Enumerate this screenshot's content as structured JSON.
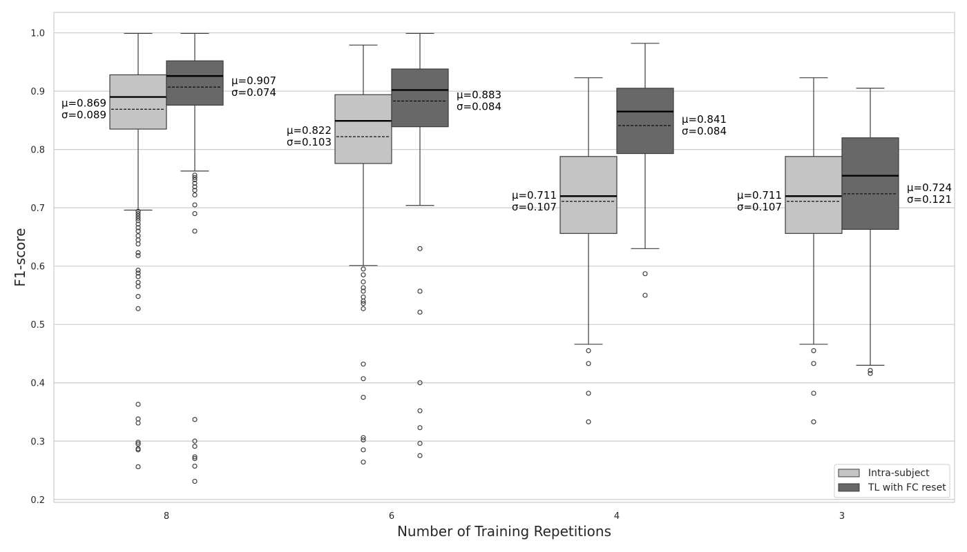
{
  "chart_data": {
    "type": "box",
    "title": "",
    "xlabel": "Number of Training Repetitions",
    "ylabel": "F1-score",
    "ylim": [
      0.195,
      1.035
    ],
    "yticks": [
      0.2,
      0.3,
      0.4,
      0.5,
      0.6,
      0.7,
      0.8,
      0.9,
      1.0
    ],
    "ytick_labels": [
      "0.2",
      "0.3",
      "0.4",
      "0.5",
      "0.6",
      "0.7",
      "0.8",
      "0.9",
      "1.0"
    ],
    "categories": [
      "8",
      "6",
      "4",
      "3"
    ],
    "grid": true,
    "legend_position": "bottom-right",
    "series": [
      {
        "name": "Intra-subject",
        "color": "#c4c4c4",
        "boxes": [
          {
            "whisker_low": 0.696,
            "q1": 0.835,
            "median": 0.89,
            "mean": 0.869,
            "q3": 0.928,
            "whisker_high": 0.999,
            "mean_label": "μ=0.869",
            "std_label": "σ=0.089",
            "outliers": [
              0.694,
              0.69,
              0.686,
              0.682,
              0.678,
              0.672,
              0.666,
              0.66,
              0.652,
              0.645,
              0.638,
              0.623,
              0.618,
              0.593,
              0.588,
              0.582,
              0.572,
              0.565,
              0.548,
              0.527,
              0.363,
              0.338,
              0.331,
              0.298,
              0.295,
              0.287,
              0.285,
              0.256
            ]
          },
          {
            "whisker_low": 0.601,
            "q1": 0.776,
            "median": 0.849,
            "mean": 0.822,
            "q3": 0.894,
            "whisker_high": 0.979,
            "mean_label": "μ=0.822",
            "std_label": "σ=0.103",
            "outliers": [
              0.595,
              0.585,
              0.573,
              0.563,
              0.557,
              0.547,
              0.54,
              0.536,
              0.527,
              0.432,
              0.407,
              0.375,
              0.306,
              0.302,
              0.285,
              0.264
            ]
          },
          {
            "whisker_low": 0.466,
            "q1": 0.656,
            "median": 0.72,
            "mean": 0.711,
            "q3": 0.788,
            "whisker_high": 0.923,
            "mean_label": "μ=0.711",
            "std_label": "σ=0.107",
            "outliers": [
              0.455,
              0.433,
              0.382,
              0.333
            ]
          },
          {
            "whisker_low": 0.466,
            "q1": 0.656,
            "median": 0.72,
            "mean": 0.711,
            "q3": 0.788,
            "whisker_high": 0.923,
            "mean_label": "μ=0.711",
            "std_label": "σ=0.107",
            "outliers": [
              0.455,
              0.433,
              0.382,
              0.333
            ]
          }
        ]
      },
      {
        "name": "TL with FC reset",
        "color": "#686868",
        "boxes": [
          {
            "whisker_low": 0.763,
            "q1": 0.876,
            "median": 0.926,
            "mean": 0.907,
            "q3": 0.952,
            "whisker_high": 0.999,
            "mean_label": "μ=0.907",
            "std_label": "σ=0.074",
            "outliers": [
              0.756,
              0.752,
              0.748,
              0.742,
              0.736,
              0.73,
              0.722,
              0.705,
              0.69,
              0.66,
              0.337,
              0.3,
              0.291,
              0.273,
              0.27,
              0.257,
              0.231
            ]
          },
          {
            "whisker_low": 0.704,
            "q1": 0.839,
            "median": 0.902,
            "mean": 0.883,
            "q3": 0.938,
            "whisker_high": 0.999,
            "mean_label": "μ=0.883",
            "std_label": "σ=0.084",
            "outliers": [
              0.63,
              0.557,
              0.521,
              0.4,
              0.352,
              0.323,
              0.296,
              0.275
            ]
          },
          {
            "whisker_low": 0.63,
            "q1": 0.793,
            "median": 0.865,
            "mean": 0.841,
            "q3": 0.905,
            "whisker_high": 0.982,
            "mean_label": "μ=0.841",
            "std_label": "σ=0.084",
            "outliers": [
              0.587,
              0.55
            ]
          },
          {
            "whisker_low": 0.43,
            "q1": 0.663,
            "median": 0.755,
            "mean": 0.724,
            "q3": 0.82,
            "whisker_high": 0.905,
            "mean_label": "μ=0.724",
            "std_label": "σ=0.121",
            "outliers": [
              0.421,
              0.416
            ]
          }
        ]
      }
    ]
  }
}
